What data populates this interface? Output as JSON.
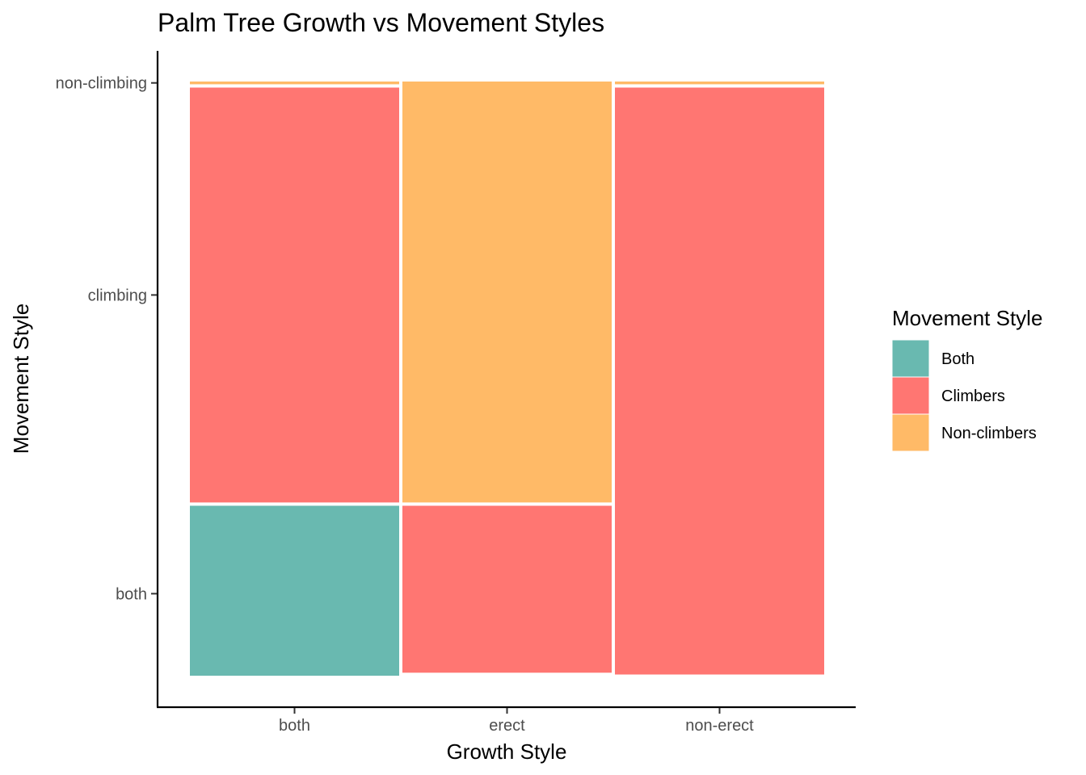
{
  "chart_data": {
    "type": "mosaic",
    "title": "Palm Tree Growth vs Movement Styles",
    "xlabel": "Growth Style",
    "ylabel": "Movement Style",
    "x_categories": [
      "both",
      "erect",
      "non-erect"
    ],
    "x_widths": [
      0.333,
      0.333,
      0.333
    ],
    "y_tick_labels": [
      "both",
      "climbing",
      "non-climbing"
    ],
    "y_tick_values": [
      0.14,
      0.64,
      0.995
    ],
    "legend_title": "Movement Style",
    "legend_position": "right",
    "legend": [
      {
        "name": "Both",
        "color": "#69b9b0"
      },
      {
        "name": "Climbers",
        "color": "#ff7672"
      },
      {
        "name": "Non-climbers",
        "color": "#ffba67"
      }
    ],
    "segments": [
      {
        "x": "both",
        "y": "both",
        "fill": "Both",
        "ymin": 0.0,
        "ymax": 0.29
      },
      {
        "x": "both",
        "y": "climbing",
        "fill": "Climbers",
        "ymin": 0.29,
        "ymax": 0.99
      },
      {
        "x": "both",
        "y": "non-climbing",
        "fill": "Non-climbers",
        "ymin": 0.99,
        "ymax": 1.0
      },
      {
        "x": "erect",
        "y": "both",
        "fill": "Both",
        "ymin": 0.0,
        "ymax": 0.005
      },
      {
        "x": "erect",
        "y": "climbing",
        "fill": "Climbers",
        "ymin": 0.005,
        "ymax": 0.29
      },
      {
        "x": "erect",
        "y": "non-climbing",
        "fill": "Non-climbers",
        "ymin": 0.29,
        "ymax": 1.0
      },
      {
        "x": "non-erect",
        "y": "both",
        "fill": "Both",
        "ymin": 0.0,
        "ymax": 0.002
      },
      {
        "x": "non-erect",
        "y": "climbing",
        "fill": "Climbers",
        "ymin": 0.002,
        "ymax": 0.99
      },
      {
        "x": "non-erect",
        "y": "non-climbing",
        "fill": "Non-climbers",
        "ymin": 0.99,
        "ymax": 1.0
      }
    ]
  }
}
